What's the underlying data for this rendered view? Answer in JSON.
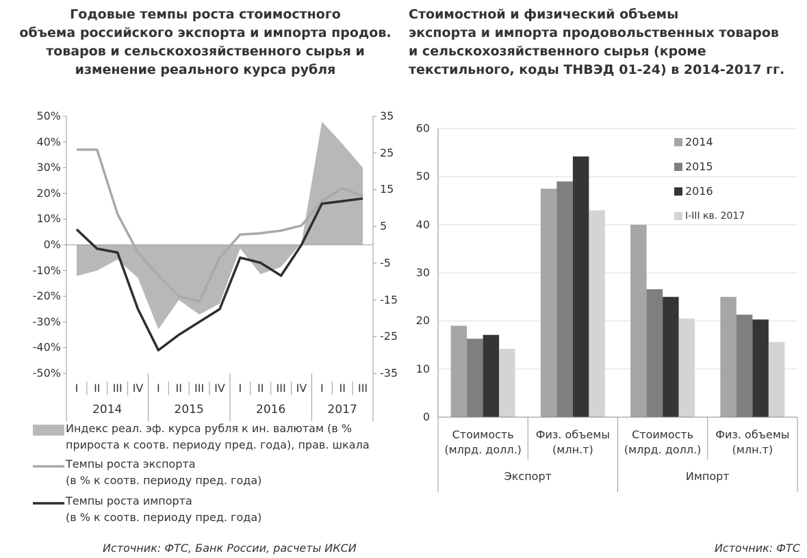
{
  "chart_data": [
    {
      "type": "line",
      "title": "Годовые темпы роста стоимостного\nобъема российского экспорта и импорта продов.\nтоваров и сельскохозяйственного сырья и\nизменение реального курса рубля",
      "category_groups": [
        {
          "name": "2014",
          "categories": [
            "I",
            "II",
            "III",
            "IV"
          ]
        },
        {
          "name": "2015",
          "categories": [
            "I",
            "II",
            "III",
            "IV"
          ]
        },
        {
          "name": "2016",
          "categories": [
            "I",
            "II",
            "III",
            "IV"
          ]
        },
        {
          "name": "2017",
          "categories": [
            "I",
            "II",
            "III"
          ]
        }
      ],
      "ylim": [
        -50,
        50
      ],
      "yticks": [
        {
          "value": 50,
          "label": "50%"
        },
        {
          "value": 40,
          "label": "40%"
        },
        {
          "value": 30,
          "label": "30%"
        },
        {
          "value": 20,
          "label": "20%"
        },
        {
          "value": 10,
          "label": "10%"
        },
        {
          "value": 0,
          "label": "0%"
        },
        {
          "value": -10,
          "label": "-10%"
        },
        {
          "value": -20,
          "label": "-20%"
        },
        {
          "value": -30,
          "label": "-30%"
        },
        {
          "value": -40,
          "label": "-40%"
        },
        {
          "value": -50,
          "label": "-50%"
        }
      ],
      "y2lim": [
        -35,
        35
      ],
      "y2ticks": [
        35,
        25,
        15,
        5,
        -5,
        -15,
        -25,
        -35
      ],
      "series": [
        {
          "name": "Индекс реал. эф. курса рубля к ин. валютам (в %\nприроста к соотв. периоду пред. года), прав. шкала",
          "type": "area",
          "axis": "y2",
          "color": "#b8b8b8",
          "values": [
            -8.5,
            -7,
            -4,
            -9,
            -23,
            -15,
            -19,
            -16,
            -1,
            -8,
            -6,
            0.5,
            33.5,
            27.5,
            21
          ]
        },
        {
          "name": "Темпы роста экспорта\n(в % к соотв. периоду пред. года)",
          "type": "line",
          "color": "#a9a9a9",
          "values": [
            37,
            37,
            12,
            -3,
            -12,
            -20,
            -22,
            -5,
            4,
            4.5,
            5.5,
            7.5,
            17,
            22,
            19
          ]
        },
        {
          "name": "Темпы роста импорта\n(в % к соотв. периоду пред. года)",
          "type": "line",
          "color": "#2e2e2e",
          "values": [
            6,
            -1.5,
            -3,
            -25,
            -41,
            -35,
            -30,
            -25,
            -5,
            -7,
            -12,
            0,
            16,
            17,
            18
          ]
        }
      ],
      "source": "Источник: ФТС, Банк России, расчеты ИКСИ"
    },
    {
      "type": "bar",
      "title": "Стоимостной и физический объемы\nэкспорта и импорта продовольственных товаров\nи сельскохозяйственного сырья (кроме\nтекстильного, коды ТНВЭД 01-24) в 2014-2017 гг.",
      "category_groups": [
        {
          "name": "Экспорт",
          "categories": [
            "Стоимость\n(млрд. долл.)",
            "Физ. объемы\n(млн.т)"
          ]
        },
        {
          "name": "Импорт",
          "categories": [
            "Стоимость\n(млрд. долл.)",
            "Физ. объемы\n(млн.т)"
          ]
        }
      ],
      "ylim": [
        0,
        60
      ],
      "yticks": [
        0,
        10,
        20,
        30,
        40,
        50,
        60
      ],
      "grid": true,
      "legend": "upper right",
      "series": [
        {
          "name": "2014",
          "color": "#a6a6a6",
          "values": [
            19,
            47.5,
            40,
            25
          ]
        },
        {
          "name": "2015",
          "color": "#7f7f7f",
          "values": [
            16.3,
            49,
            26.6,
            21.3
          ]
        },
        {
          "name": "2016",
          "color": "#353535",
          "values": [
            17.1,
            54.2,
            25,
            20.3
          ]
        },
        {
          "name": "I-III кв. 2017",
          "color": "#d4d4d4",
          "values": [
            14.2,
            43,
            20.5,
            15.6
          ]
        }
      ],
      "source": "Источник: ФТС"
    }
  ]
}
